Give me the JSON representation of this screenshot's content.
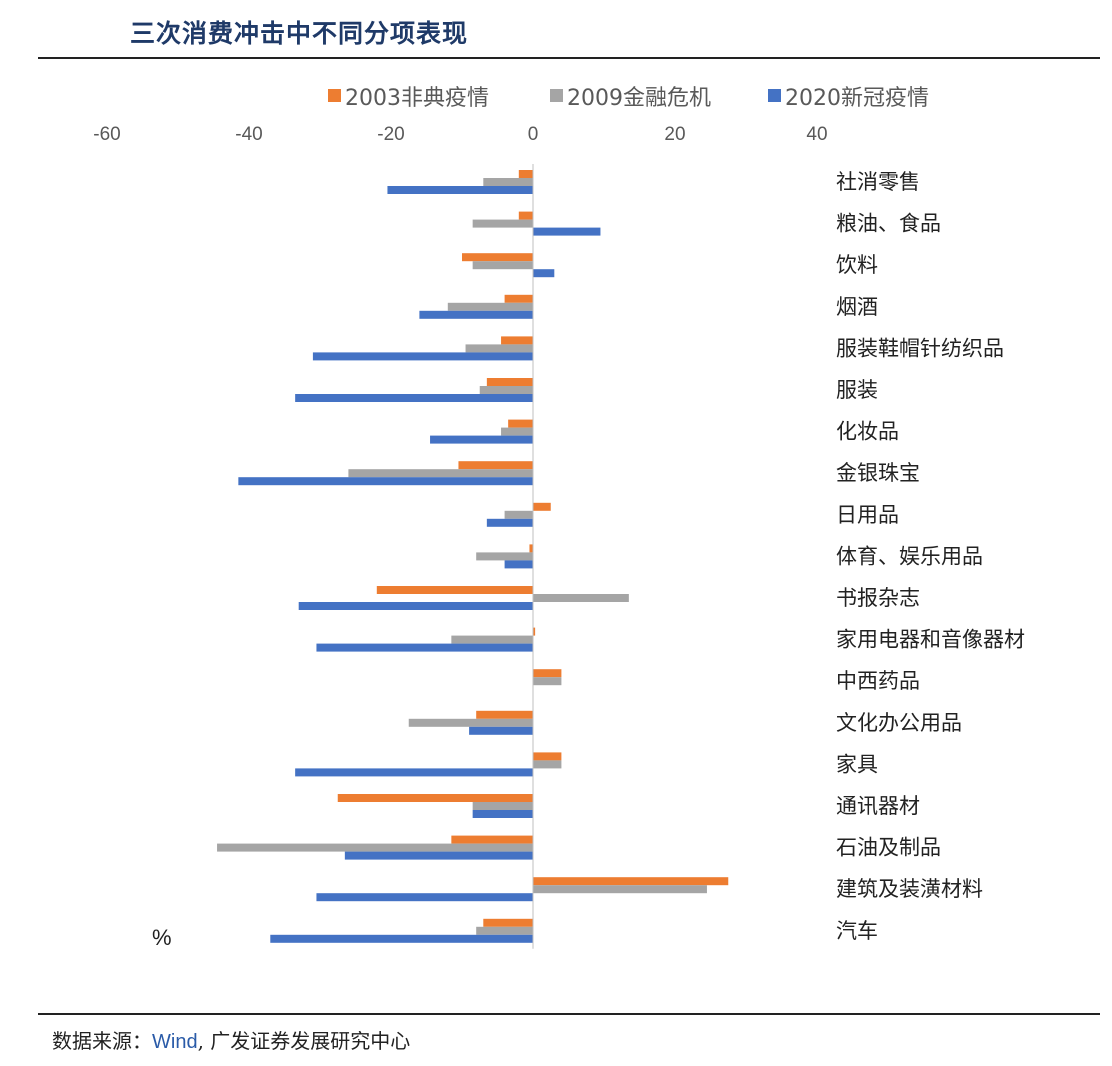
{
  "page": {
    "title": "三次消费冲击中不同分项表现",
    "source_prefix": "数据来源：",
    "source_wind": "Wind",
    "source_suffix": ", 广发证券发展研究中心"
  },
  "chart_data": {
    "type": "bar",
    "orientation": "horizontal",
    "unit": "%",
    "xlim": [
      -60,
      40
    ],
    "xticks": [
      -60,
      -40,
      -20,
      0,
      20,
      40
    ],
    "grid": false,
    "legend_position": "top",
    "categories": [
      "社消零售",
      "粮油、食品",
      "饮料",
      "烟酒",
      "服装鞋帽针纺织品",
      "服装",
      "化妆品",
      "金银珠宝",
      "日用品",
      "体育、娱乐用品",
      "书报杂志",
      "家用电器和音像器材",
      "中西药品",
      "文化办公用品",
      "家具",
      "通讯器材",
      "石油及制品",
      "建筑及装潢材料",
      "汽车"
    ],
    "series": [
      {
        "name": "2003非典疫情",
        "color": "#ED7D31",
        "values": [
          -2,
          -2,
          -10,
          -4,
          -4.5,
          -6.5,
          -3.5,
          -10.5,
          2.5,
          -0.5,
          -22,
          0.3,
          4,
          -8,
          4,
          -27.5,
          -11.5,
          27.5,
          -7
        ]
      },
      {
        "name": "2009金融危机",
        "color": "#A5A5A5",
        "values": [
          -7,
          -8.5,
          -8.5,
          -12,
          -9.5,
          -7.5,
          -4.5,
          -26,
          -4,
          -8,
          13.5,
          -11.5,
          4,
          -17.5,
          4,
          -8.5,
          -44.5,
          24.5,
          -8
        ]
      },
      {
        "name": "2020新冠疫情",
        "color": "#4472C4",
        "values": [
          -20.5,
          9.5,
          3,
          -16,
          -31,
          -33.5,
          -14.5,
          -41.5,
          -6.5,
          -4,
          -33,
          -30.5,
          0,
          -9,
          -33.5,
          -8.5,
          -26.5,
          -30.5,
          -37
        ]
      }
    ]
  }
}
